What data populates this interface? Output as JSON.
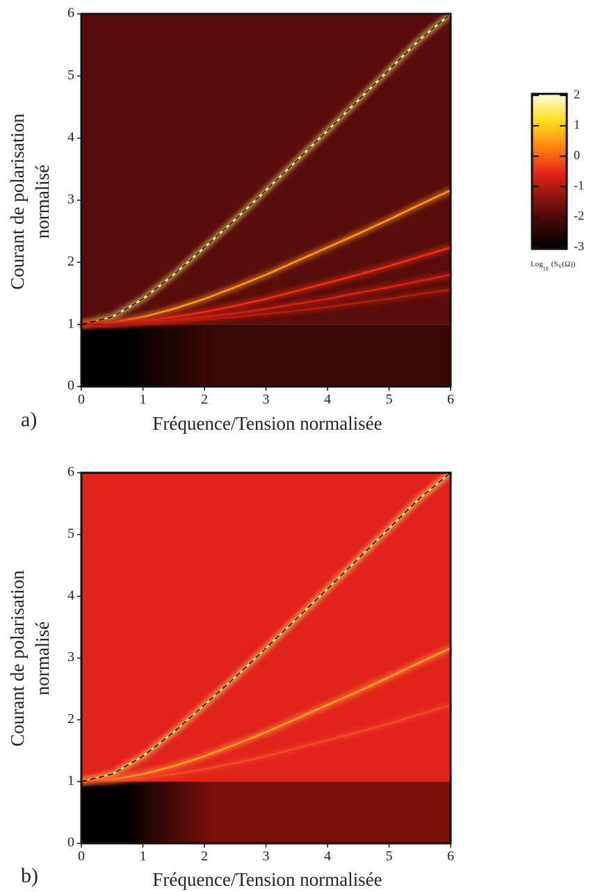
{
  "chart_data": [
    {
      "type": "heatmap",
      "panel_label": "a)",
      "x_label": "Fréquence/Tension normalisée",
      "y_label": [
        "Courant de polarisation",
        "normalisé"
      ],
      "xlim": [
        0,
        6
      ],
      "ylim": [
        0,
        6
      ],
      "xticks": [
        0,
        1,
        2,
        3,
        4,
        5,
        6
      ],
      "yticks": [
        0,
        1,
        2,
        3,
        4,
        5,
        6
      ],
      "background": "#5a0e0b",
      "background_low": "#3a0806",
      "x": [
        0,
        0.5,
        1,
        1.5,
        2,
        2.5,
        3,
        3.5,
        4,
        4.5,
        5,
        5.5,
        6
      ],
      "series": [
        {
          "color": "#ffef80",
          "values": [
            1,
            1.12,
            1.41,
            1.8,
            2.24,
            2.69,
            3.16,
            3.64,
            4.12,
            4.61,
            5.1,
            5.59,
            6.0
          ]
        },
        {
          "color": "#ff9a1a",
          "values": [
            1,
            1.03,
            1.12,
            1.25,
            1.41,
            1.6,
            1.8,
            2.02,
            2.24,
            2.46,
            2.69,
            2.93,
            3.16
          ]
        },
        {
          "color": "#f03018",
          "values": [
            1,
            1.01,
            1.05,
            1.12,
            1.2,
            1.3,
            1.41,
            1.54,
            1.67,
            1.8,
            1.94,
            2.09,
            2.24
          ]
        },
        {
          "color": "#d82414",
          "values": [
            1,
            1.01,
            1.03,
            1.07,
            1.12,
            1.18,
            1.25,
            1.33,
            1.41,
            1.51,
            1.6,
            1.7,
            1.8
          ]
        },
        {
          "color": "#b01c10",
          "values": [
            1,
            1.0,
            1.02,
            1.04,
            1.08,
            1.12,
            1.17,
            1.22,
            1.28,
            1.35,
            1.41,
            1.49,
            1.56
          ]
        },
        {
          "color": "#000000",
          "dashed": true,
          "values": [
            1,
            1.12,
            1.41,
            1.8,
            2.24,
            2.69,
            3.16,
            3.64,
            4.12,
            4.61,
            5.1,
            5.59,
            6.0
          ]
        }
      ],
      "colorbar": {
        "lim": [
          -3.05,
          2.05
        ],
        "ticks": [
          2,
          1,
          0,
          -1,
          -2,
          -3
        ],
        "colors": [
          "#000000",
          "#3a0806",
          "#8a1410",
          "#e8281a",
          "#ff8a10",
          "#ffe020",
          "#fffbe0"
        ],
        "label": {
          "base": "Log",
          "sub": "10",
          "pre": "(S",
          "sub2": "V",
          "post": "(Ω))"
        }
      }
    },
    {
      "type": "heatmap",
      "panel_label": "b)",
      "x_label": "Fréquence/Tension normalisée",
      "y_label": [
        "Courant de polarisation",
        "normalisé"
      ],
      "xlim": [
        0,
        6
      ],
      "ylim": [
        0,
        6
      ],
      "xticks": [
        0,
        1,
        2,
        3,
        4,
        5,
        6
      ],
      "yticks": [
        0,
        1,
        2,
        3,
        4,
        5,
        6
      ],
      "background": "#e2231c",
      "background_low": "#7a100c",
      "x": [
        0,
        0.5,
        1,
        1.5,
        2,
        2.5,
        3,
        3.5,
        4,
        4.5,
        5,
        5.5,
        6
      ],
      "series": [
        {
          "color": "#ffef70",
          "values": [
            1,
            1.12,
            1.41,
            1.8,
            2.24,
            2.69,
            3.16,
            3.64,
            4.12,
            4.61,
            5.1,
            5.59,
            6.0
          ]
        },
        {
          "color": "#ffa030",
          "values": [
            1,
            1.03,
            1.12,
            1.25,
            1.41,
            1.6,
            1.8,
            2.02,
            2.24,
            2.46,
            2.69,
            2.93,
            3.16
          ]
        },
        {
          "color": "#f04a28",
          "values": [
            1,
            1.01,
            1.05,
            1.12,
            1.2,
            1.3,
            1.41,
            1.54,
            1.67,
            1.8,
            1.94,
            2.09,
            2.24
          ]
        },
        {
          "color": "#000000",
          "dashed": true,
          "values": [
            1,
            1.12,
            1.41,
            1.8,
            2.24,
            2.69,
            3.16,
            3.64,
            4.12,
            4.61,
            5.1,
            5.59,
            6.0
          ]
        }
      ]
    }
  ]
}
